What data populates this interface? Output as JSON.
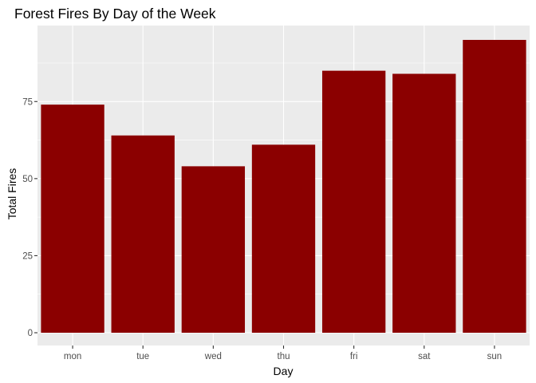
{
  "chart_data": {
    "type": "bar",
    "title": "Forest Fires By Day of the Week",
    "xlabel": "Day",
    "ylabel": "Total Fires",
    "categories": [
      "mon",
      "tue",
      "wed",
      "thu",
      "fri",
      "sat",
      "sun"
    ],
    "values": [
      74,
      64,
      54,
      61,
      85,
      84,
      95
    ],
    "ylim": [
      0,
      100
    ],
    "yticks": [
      0,
      25,
      50,
      75
    ],
    "ytick_labels": [
      "0",
      "25",
      "50",
      "75"
    ],
    "grid": true,
    "legend": "none",
    "colors": {
      "bar": "#8b0000",
      "panel_background": "#ebebeb",
      "grid_major": "#ffffff",
      "tick_text": "#4d4d4d",
      "tick_mark": "#333333"
    }
  }
}
